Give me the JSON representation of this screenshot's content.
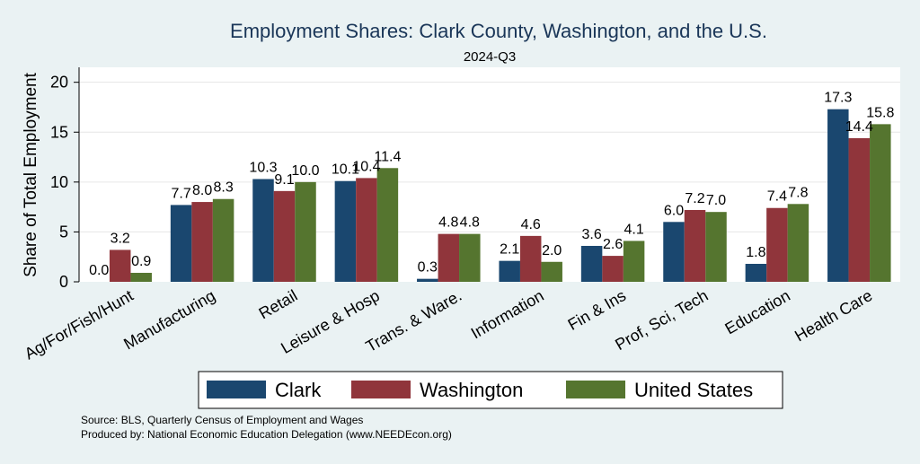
{
  "chart_data": {
    "type": "bar",
    "title": "Employment Shares: Clark County, Washington, and the U.S.",
    "subtitle": "2024-Q3",
    "ylabel": "Share of Total Employment",
    "xlabel": "",
    "ylim": [
      0,
      21.5
    ],
    "yticks": [
      0,
      5,
      10,
      15,
      20
    ],
    "grid": true,
    "legend_position": "bottom",
    "categories": [
      "Ag/For/Fish/Hunt",
      "Manufacturing",
      "Retail",
      "Leisure & Hosp",
      "Trans. & Ware.",
      "Information",
      "Fin & Ins",
      "Prof, Sci, Tech",
      "Education",
      "Health Care"
    ],
    "series": [
      {
        "name": "Clark",
        "color": "#1a476f",
        "values": [
          0.0,
          7.7,
          10.3,
          10.1,
          0.3,
          2.1,
          3.6,
          6.0,
          1.8,
          17.3
        ]
      },
      {
        "name": "Washington",
        "color": "#90353b",
        "values": [
          3.2,
          8.0,
          9.1,
          10.4,
          4.8,
          4.6,
          2.6,
          7.2,
          7.4,
          14.4
        ]
      },
      {
        "name": "United States",
        "color": "#55752f",
        "values": [
          0.9,
          8.3,
          10.0,
          11.4,
          4.8,
          2.0,
          4.1,
          7.0,
          7.8,
          15.8
        ]
      }
    ],
    "notes": [
      "Source: BLS, Quarterly Census of Employment and Wages",
      "Produced by: National Economic Education Delegation (www.NEEDEcon.org)"
    ]
  }
}
